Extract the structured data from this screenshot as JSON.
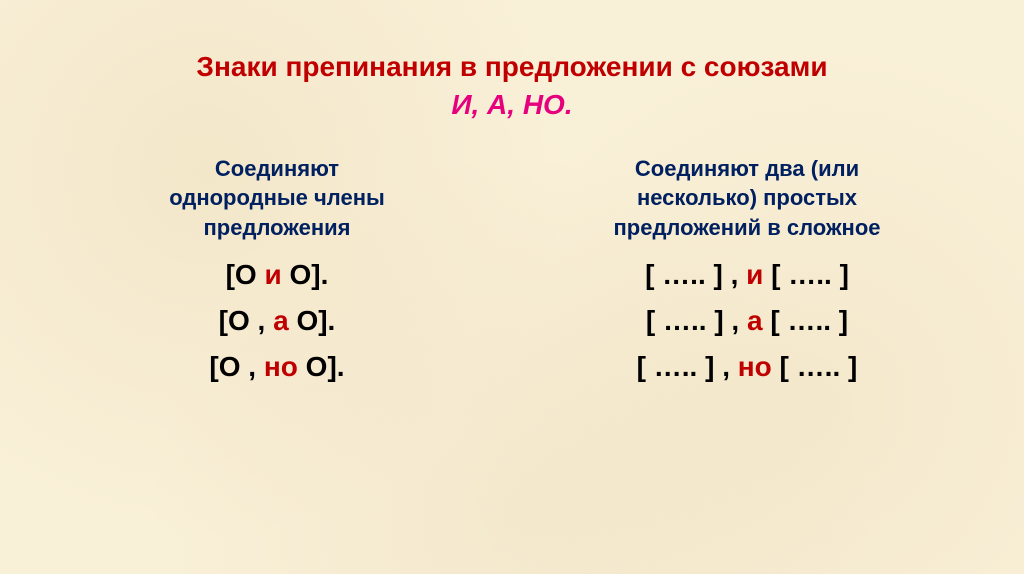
{
  "colors": {
    "background": "#f9f0d8",
    "title_main": "#c00000",
    "title_sub": "#e6007e",
    "subheading": "#002060",
    "body_text": "#000000",
    "conj": "#c00000"
  },
  "fonts": {
    "title_size_pt": 21,
    "sub_size_pt": 16,
    "body_size_pt": 21
  },
  "title": {
    "line1": "Знаки препинания в предложении с союзами",
    "line2": "И, А, НО."
  },
  "left": {
    "heading_l1": "Соединяют",
    "heading_l2": "однородные члены",
    "heading_l3": "предложения",
    "rows": [
      {
        "pre": "[О ",
        "conj": "и",
        "post": " О]."
      },
      {
        "pre": "[О , ",
        "conj": "а",
        "post": " О]."
      },
      {
        "pre": "[О , ",
        "conj": "но",
        "post": " О]."
      }
    ]
  },
  "right": {
    "heading_l1": "Соединяют два (или",
    "heading_l2": "несколько) простых",
    "heading_l3": "предложений в сложное",
    "rows": [
      {
        "pre": "[ …..  ] , ",
        "conj": "и",
        "post": "  [ ….. ]"
      },
      {
        "pre": "[ …..  ] , ",
        "conj": "а",
        "post": " [ ….. ]"
      },
      {
        "pre": "[ …..  ] , ",
        "conj": "но",
        "post": " [ ….. ]"
      }
    ]
  }
}
